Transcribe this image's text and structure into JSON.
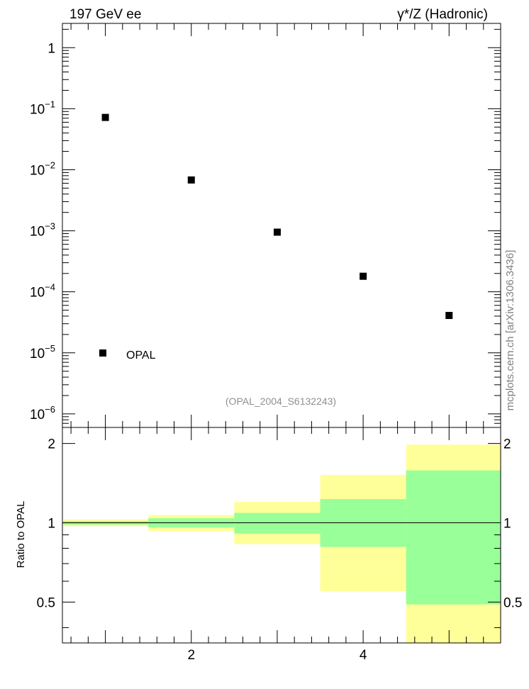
{
  "chart_data": [
    {
      "type": "scatter",
      "title_left": "197 GeV ee",
      "title_right": "γ*/Z (Hadronic)",
      "yscale": "log",
      "xlim": [
        0.5,
        5.6
      ],
      "ylim": [
        6e-07,
        2.5
      ],
      "yticks": [
        {
          "base": "1",
          "exp": ""
        },
        {
          "base": "10",
          "exp": "−1"
        },
        {
          "base": "10",
          "exp": "−2"
        },
        {
          "base": "10",
          "exp": "−3"
        },
        {
          "base": "10",
          "exp": "−4"
        },
        {
          "base": "10",
          "exp": "−5"
        },
        {
          "base": "10",
          "exp": "−6"
        }
      ],
      "series": [
        {
          "name": "OPAL",
          "x": [
            1,
            2,
            3,
            4,
            5
          ],
          "y": [
            0.072,
            0.0068,
            0.00095,
            0.00018,
            4.1e-05
          ]
        }
      ],
      "legend_position": "bottom-left",
      "annotation": "(OPAL_2004_S6132243)",
      "grid": false
    },
    {
      "type": "area",
      "ylabel": "Ratio to OPAL",
      "xlim": [
        0.5,
        5.6
      ],
      "ylim": [
        0.35,
        2.3
      ],
      "xticks": [
        "2",
        "4"
      ],
      "yticks": [
        "0.5",
        "1",
        "2"
      ],
      "reference_line": 1,
      "bins": [
        {
          "x0": 0.5,
          "x1": 1.5,
          "inner": [
            0.985,
            1.015
          ],
          "outer": [
            0.97,
            1.03
          ]
        },
        {
          "x0": 1.5,
          "x1": 2.5,
          "inner": [
            0.96,
            1.04
          ],
          "outer": [
            0.93,
            1.07
          ]
        },
        {
          "x0": 2.5,
          "x1": 3.5,
          "inner": [
            0.91,
            1.09
          ],
          "outer": [
            0.83,
            1.2
          ]
        },
        {
          "x0": 3.5,
          "x1": 4.5,
          "inner": [
            0.81,
            1.23
          ],
          "outer": [
            0.55,
            1.52
          ]
        },
        {
          "x0": 4.5,
          "x1": 5.6,
          "inner": [
            0.49,
            1.58
          ],
          "outer": [
            0.35,
            1.98
          ]
        }
      ],
      "band_colors": {
        "inner": "#99ff99",
        "outer": "#ffff99"
      },
      "grid": false
    }
  ],
  "side_label": "mcplots.cern.ch [arXiv:1306.3436]"
}
